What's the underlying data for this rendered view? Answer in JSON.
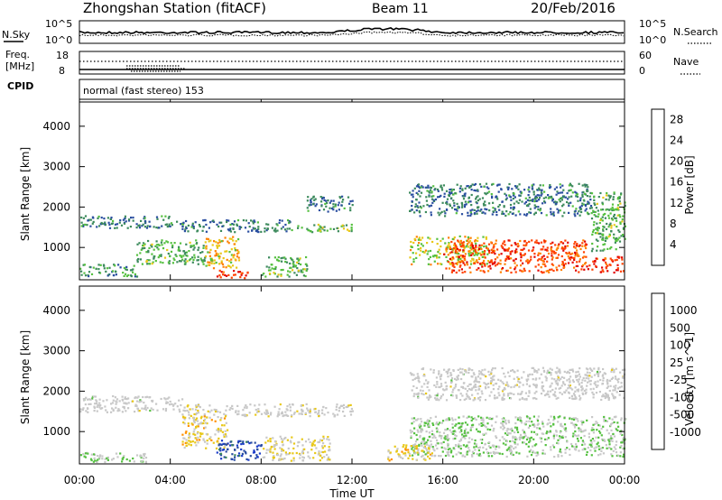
{
  "header": {
    "title": "Zhongshan Station (fitACF)",
    "beam": "Beam 11",
    "date": "20/Feb/2016"
  },
  "noise_panel": {
    "left_label": "N.Sky",
    "right_label": "N.Search",
    "left_ticks": [
      "10^5",
      "10^0"
    ],
    "right_ticks": [
      "10^5",
      "10^0"
    ]
  },
  "freq_panel": {
    "left_label_1": "Freq.",
    "left_label_2": "[MHz]",
    "right_label": "Nave",
    "left_ticks": [
      "18",
      "8"
    ],
    "right_ticks": [
      "60",
      "0"
    ]
  },
  "cpid": {
    "label": "CPID",
    "text": "normal (fast stereo) 153"
  },
  "time_axis": {
    "ticks": [
      "00:00",
      "04:00",
      "08:00",
      "12:00",
      "16:00",
      "20:00",
      "00:00"
    ],
    "label": "Time UT"
  },
  "colors": {
    "power_scale": [
      "#0000ff",
      "#2a4ea0",
      "#3c8a5c",
      "#55c040",
      "#e8c818",
      "#ff8000",
      "#ff4000",
      "#e00000"
    ],
    "velocity_scale": [
      "#e00000",
      "#ff4000",
      "#ff9000",
      "#e8c818",
      "#c8c8c8",
      "#c8c8c8",
      "#55c040",
      "#3c8a5c",
      "#2a4ea0",
      "#1c3cc8"
    ]
  },
  "chart_data": [
    {
      "type": "heatmap",
      "panel": "power",
      "ylabel": "Slant Range [km]",
      "yticks": [
        "1000",
        "2000",
        "3000",
        "4000"
      ],
      "ylim": [
        200,
        4600
      ],
      "xlim_hours": [
        0,
        24
      ],
      "colorbar": {
        "label": "Power [dB]",
        "ticks": [
          "4",
          "8",
          "12",
          "16",
          "20",
          "24",
          "28"
        ],
        "range": [
          0,
          30
        ]
      },
      "regions": [
        {
          "t0": 0.0,
          "t1": 4.5,
          "r0": 1500,
          "r1": 1800,
          "value": 8
        },
        {
          "t0": 4.5,
          "t1": 9.5,
          "r0": 1400,
          "r1": 1700,
          "value": 8
        },
        {
          "t0": 9.5,
          "t1": 12.0,
          "r0": 1400,
          "r1": 1600,
          "value": 12
        },
        {
          "t0": 0.0,
          "t1": 2.5,
          "r0": 300,
          "r1": 600,
          "value": 10
        },
        {
          "t0": 2.5,
          "t1": 5.5,
          "r0": 600,
          "r1": 1200,
          "value": 12
        },
        {
          "t0": 5.5,
          "t1": 7.0,
          "r0": 500,
          "r1": 1300,
          "value": 18
        },
        {
          "t0": 6.0,
          "t1": 7.5,
          "r0": 250,
          "r1": 450,
          "value": 26
        },
        {
          "t0": 8.0,
          "t1": 10.0,
          "r0": 300,
          "r1": 800,
          "value": 12
        },
        {
          "t0": 10.0,
          "t1": 12.0,
          "r0": 1900,
          "r1": 2300,
          "value": 8
        },
        {
          "t0": 14.5,
          "t1": 22.5,
          "r0": 1800,
          "r1": 2600,
          "value": 8
        },
        {
          "t0": 14.5,
          "t1": 18.0,
          "r0": 600,
          "r1": 1300,
          "value": 16
        },
        {
          "t0": 16.0,
          "t1": 22.5,
          "r0": 400,
          "r1": 1200,
          "value": 24
        },
        {
          "t0": 22.5,
          "t1": 24.0,
          "r0": 900,
          "r1": 2400,
          "value": 12
        },
        {
          "t0": 22.5,
          "t1": 24.0,
          "r0": 400,
          "r1": 800,
          "value": 26
        }
      ]
    },
    {
      "type": "heatmap",
      "panel": "velocity",
      "ylabel": "Slant Range [km]",
      "yticks": [
        "1000",
        "2000",
        "3000",
        "4000"
      ],
      "ylim": [
        200,
        4600
      ],
      "xlim_hours": [
        0,
        24
      ],
      "colorbar": {
        "label": "Velocity [m s^-1]",
        "ticks": [
          "1000",
          "500",
          "100",
          "25",
          "-25",
          "-100",
          "-500",
          "-1000"
        ],
        "range": [
          -1200,
          1200
        ]
      },
      "regions": [
        {
          "t0": 0.0,
          "t1": 4.5,
          "r0": 1500,
          "r1": 1900,
          "value": 0
        },
        {
          "t0": 4.5,
          "t1": 12.0,
          "r0": 1400,
          "r1": 1700,
          "value": -60
        },
        {
          "t0": 0.0,
          "t1": 3.0,
          "r0": 250,
          "r1": 500,
          "value": 200
        },
        {
          "t0": 4.5,
          "t1": 6.5,
          "r0": 600,
          "r1": 1400,
          "value": -300
        },
        {
          "t0": 6.0,
          "t1": 8.0,
          "r0": 300,
          "r1": 800,
          "value": 900
        },
        {
          "t0": 8.0,
          "t1": 11.0,
          "r0": 300,
          "r1": 900,
          "value": -200
        },
        {
          "t0": 14.5,
          "t1": 24.0,
          "r0": 1800,
          "r1": 2600,
          "value": 0
        },
        {
          "t0": 14.5,
          "t1": 24.0,
          "r0": 400,
          "r1": 1400,
          "value": 200
        },
        {
          "t0": 13.5,
          "t1": 15.5,
          "r0": 300,
          "r1": 700,
          "value": -300
        }
      ]
    }
  ]
}
